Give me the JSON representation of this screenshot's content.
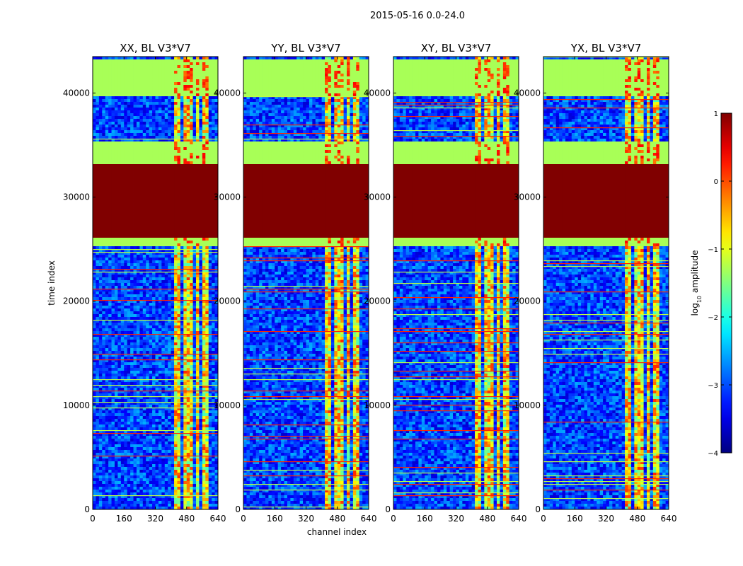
{
  "chart_data": {
    "type": "heatmap",
    "suptitle": "2015-05-16 0.0-24.0",
    "xlabel": "channel index",
    "ylabel": "time index",
    "xlim": [
      0,
      640
    ],
    "ylim": [
      0,
      43500
    ],
    "xticks": [
      0,
      160,
      320,
      480,
      640
    ],
    "yticks": [
      0,
      10000,
      20000,
      30000,
      40000
    ],
    "panels": [
      {
        "title": "XX, BL V3*V7"
      },
      {
        "title": "YY, BL V3*V7"
      },
      {
        "title": "XY, BL V3*V7"
      },
      {
        "title": "YX, BL V3*V7"
      }
    ],
    "colorbar": {
      "label_prefix": "log",
      "label_sub": "10",
      "label_suffix": " amplitude",
      "vmin": -4,
      "vmax": 1,
      "ticks": [
        -4,
        -3,
        -2,
        -1,
        0,
        1
      ],
      "tick_labels": [
        "−4",
        "−3",
        "−2",
        "−1",
        "0",
        "1"
      ],
      "colormap": "jet"
    },
    "regions": {
      "saturated_rows": [
        [
          26000,
          33300
        ]
      ],
      "flat_rows": [
        [
          39800,
          43200
        ],
        [
          33300,
          35400
        ],
        [
          25200,
          26000
        ]
      ],
      "rfi_channels": [
        [
          410,
          450
        ],
        [
          470,
          488
        ],
        [
          500,
          518
        ],
        [
          530,
          548
        ],
        [
          565,
          598
        ]
      ]
    }
  }
}
